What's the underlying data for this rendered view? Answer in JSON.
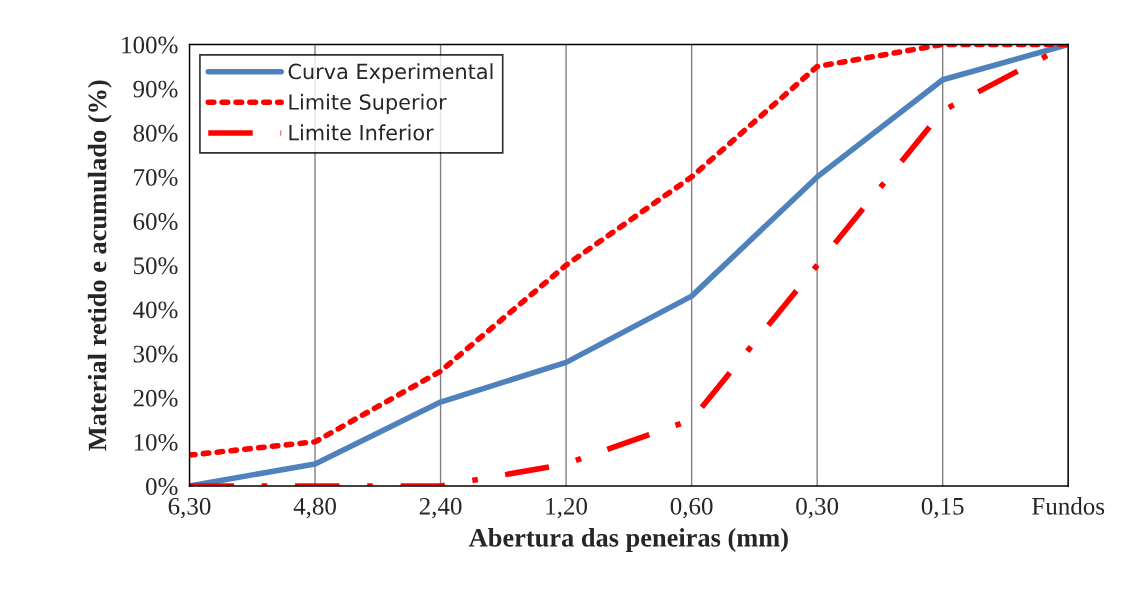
{
  "chart_data": {
    "type": "line",
    "xlabel": "Abertura das peneiras (mm)",
    "ylabel": "Material retido e acumulado (%)",
    "categories": [
      "6,30",
      "4,80",
      "2,40",
      "1,20",
      "0,60",
      "0,30",
      "0,15",
      "Fundos"
    ],
    "series": [
      {
        "name": "Curva Experimental",
        "color": "#4f81bd",
        "line_style": "solid",
        "values": [
          0,
          5,
          19,
          28,
          43,
          70,
          92,
          100
        ]
      },
      {
        "name": "Limite Superior",
        "color": "#ff0000",
        "line_style": "dotted",
        "values": [
          7,
          10,
          26,
          50,
          70,
          95,
          100,
          100
        ]
      },
      {
        "name": "Limite Inferior",
        "color": "#ff0000",
        "line_style": "dashdot",
        "values": [
          0,
          0,
          0,
          5,
          15,
          50,
          85,
          100
        ]
      }
    ],
    "ylim": [
      0,
      100
    ],
    "yticks": [
      {
        "value": 0,
        "label": "0%"
      },
      {
        "value": 10,
        "label": "10%"
      },
      {
        "value": 20,
        "label": "20%"
      },
      {
        "value": 30,
        "label": "30%"
      },
      {
        "value": 40,
        "label": "40%"
      },
      {
        "value": 50,
        "label": "50%"
      },
      {
        "value": 60,
        "label": "60%"
      },
      {
        "value": 70,
        "label": "70%"
      },
      {
        "value": 80,
        "label": "80%"
      },
      {
        "value": 90,
        "label": "90%"
      },
      {
        "value": 100,
        "label": "100%"
      }
    ],
    "grid": "x",
    "legend": "top left",
    "marker": "none"
  }
}
